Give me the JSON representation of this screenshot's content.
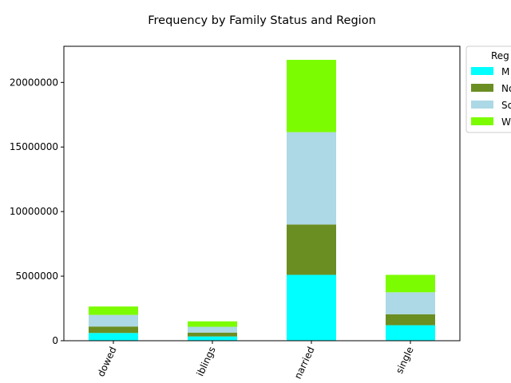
{
  "chart_data": {
    "type": "bar",
    "stacked": true,
    "title": "Frequency by Family Status and Region",
    "xlabel": "",
    "ylabel": "",
    "categories": [
      "widowed",
      "with siblings",
      "married",
      "single"
    ],
    "category_labels_visible": [
      "dowed",
      "iblings",
      "narried",
      "single"
    ],
    "series": [
      {
        "name": "Midwest",
        "legend_visible": "M",
        "color": "#00ffff",
        "values": [
          600000,
          330000,
          5100000,
          1200000
        ]
      },
      {
        "name": "Northeast",
        "legend_visible": "No",
        "color": "#6b8e23",
        "values": [
          500000,
          300000,
          3900000,
          850000
        ]
      },
      {
        "name": "South",
        "legend_visible": "So",
        "color": "#add8e6",
        "values": [
          900000,
          450000,
          7150000,
          1700000
        ]
      },
      {
        "name": "West",
        "legend_visible": "W",
        "color": "#7cfc00",
        "values": [
          650000,
          420000,
          5600000,
          1350000
        ]
      }
    ],
    "ylim": [
      0,
      22800000
    ],
    "yticks": [
      0,
      5000000,
      10000000,
      15000000,
      20000000
    ],
    "ytick_labels": [
      "0",
      "5000000",
      "10000000",
      "15000000",
      "20000000"
    ],
    "grid": false,
    "legend": {
      "title": "Region",
      "title_visible": "Reg",
      "placement": "outside-top-right"
    }
  }
}
